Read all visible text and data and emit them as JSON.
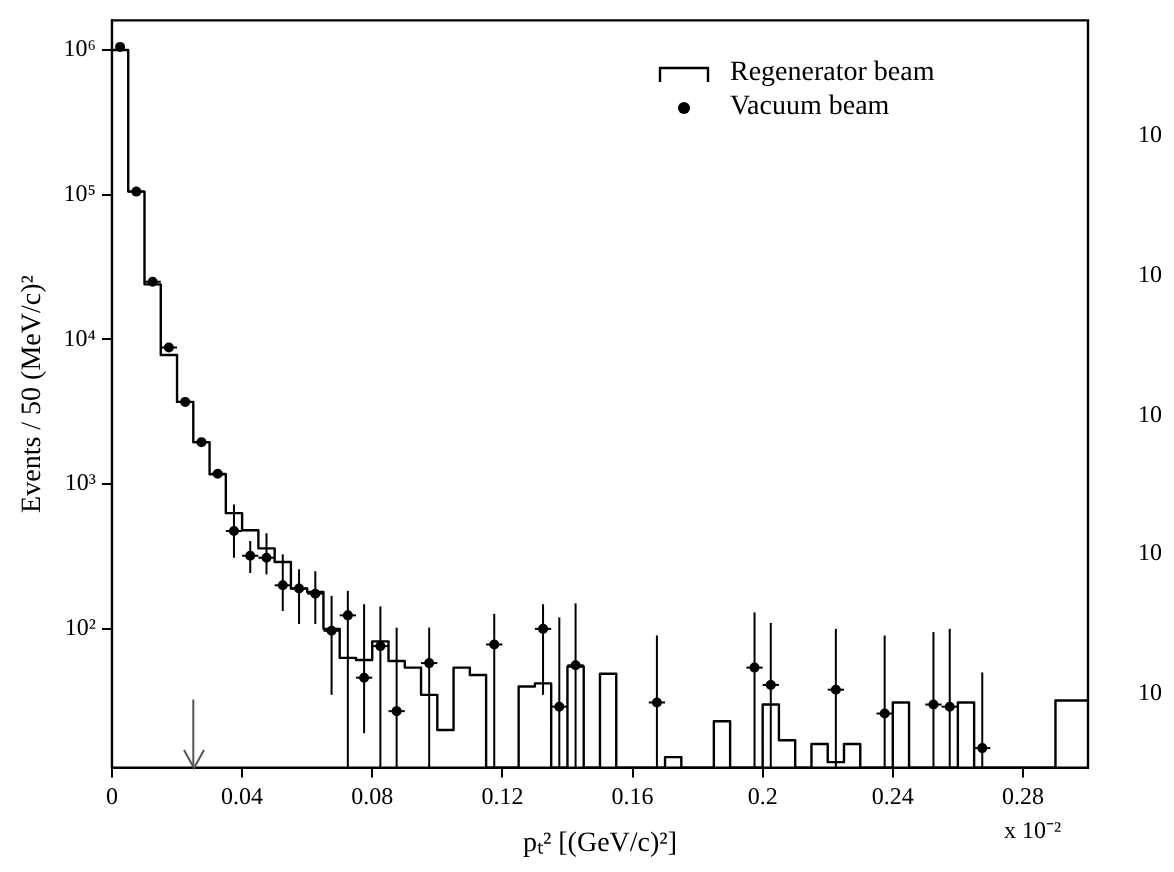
{
  "chart_data": {
    "type": "histogram",
    "xlabel": "pₜ² [(GeV/c)²]",
    "ylabel": "Events / 50 (MeV/c)²",
    "log": "y",
    "legend": "top right",
    "xlim": [
      0,
      0.3
    ],
    "xticks": [
      0,
      0.04,
      0.08,
      0.12,
      0.16,
      0.2,
      0.24,
      0.28
    ],
    "ylim": [
      11,
      1600000
    ],
    "yticks": [
      {
        "value": 100,
        "label": "10²"
      },
      {
        "value": 1000,
        "label": "10³"
      },
      {
        "value": 10000,
        "label": "10⁴"
      },
      {
        "value": 100000,
        "label": "10⁵"
      },
      {
        "value": 1000000,
        "label": "10⁶"
      }
    ],
    "ref_lines": [
      {
        "axis": "x",
        "value": 0.025,
        "color": "#555555"
      }
    ],
    "annotations": [
      "x 10⁻²",
      "10",
      "10",
      "10",
      "10",
      "10"
    ],
    "series": [
      {
        "type": "histogram",
        "name": "Regenerator beam",
        "color": "#000000",
        "bins": [
          0,
          0.005,
          0.01,
          0.015,
          0.02,
          0.025,
          0.03,
          0.035,
          0.04,
          0.045,
          0.05,
          0.055,
          0.06,
          0.065,
          0.07,
          0.075,
          0.08,
          0.085,
          0.09,
          0.095,
          0.1,
          0.105,
          0.11,
          0.115,
          0.12,
          0.125,
          0.13,
          0.135,
          0.14,
          0.145,
          0.15,
          0.155,
          0.16,
          0.165,
          0.17,
          0.175,
          0.18,
          0.185,
          0.19,
          0.195,
          0.2,
          0.205,
          0.21,
          0.215,
          0.22,
          0.225,
          0.23,
          0.235,
          0.24,
          0.245,
          0.25,
          0.255,
          0.26,
          0.265,
          0.27,
          0.275,
          0.28,
          0.285,
          0.29,
          0.295,
          0.3
        ],
        "values": [
          1000000,
          105000,
          24000,
          7800,
          3700,
          1950,
          1170,
          630,
          480,
          360,
          290,
          190,
          180,
          100,
          63,
          61,
          82,
          60,
          54,
          35,
          20,
          54,
          48,
          null,
          null,
          40,
          42,
          null,
          55,
          null,
          49,
          null,
          null,
          null,
          13,
          null,
          null,
          23,
          null,
          null,
          30,
          17,
          null,
          16,
          12,
          16,
          null,
          null,
          31,
          null,
          null,
          null,
          31,
          null,
          null,
          null,
          null,
          null,
          32,
          32
        ]
      },
      {
        "type": "scatter",
        "name": "Vacuum beam",
        "color": "#000000",
        "marker": "circle",
        "x": [
          0.0025,
          0.0075,
          0.0125,
          0.0175,
          0.0225,
          0.0275,
          0.0325,
          0.0375,
          0.0425,
          0.0475,
          0.0525,
          0.0575,
          0.0625,
          0.0675,
          0.0725,
          0.0775,
          0.0825,
          0.0875,
          0.0975,
          0.1175,
          0.1325,
          0.1375,
          0.1425,
          0.1675,
          0.1975,
          0.2025,
          0.2225,
          0.2375,
          0.2525,
          0.2575,
          0.2675
        ],
        "values": [
          1050000,
          105000,
          25000,
          8800,
          3700,
          1950,
          1180,
          475,
          320,
          310,
          200,
          190,
          175,
          97,
          124,
          46,
          76,
          27,
          58,
          78,
          100,
          29,
          56,
          31,
          54,
          41,
          38,
          26,
          30,
          29,
          15
        ],
        "errors": [
          null,
          null,
          null,
          null,
          null,
          null,
          null,
          [
            310,
            724
          ],
          [
            243,
            405
          ],
          [
            238,
            458
          ],
          [
            133,
            327
          ],
          [
            108,
            258
          ],
          [
            108,
            250
          ],
          [
            35,
            169
          ],
          [
            11,
            183
          ],
          [
            19,
            148
          ],
          [
            11,
            143
          ],
          [
            11,
            102
          ],
          [
            11,
            102
          ],
          [
            11,
            127
          ],
          [
            35,
            148
          ],
          [
            11,
            120
          ],
          [
            11,
            150
          ],
          [
            11,
            90
          ],
          [
            11,
            130
          ],
          [
            11,
            110
          ],
          [
            11,
            100
          ],
          [
            11,
            90
          ],
          [
            11,
            95
          ],
          [
            11,
            100
          ],
          [
            11,
            50
          ]
        ],
        "xerrors": [
          null,
          0.0025,
          0.0025,
          0.0025,
          0.0025,
          0.0025,
          0.0025,
          0.0025,
          0.0025,
          0.0025,
          0.0025,
          0.0025,
          0.0025,
          0.0025,
          0.0025,
          0.0025,
          0.0025,
          0.0025,
          0.0025,
          0.0025,
          0.0025,
          0.0025,
          0.0025,
          0.0025,
          0.0025,
          0.0025,
          0.0025,
          0.0025,
          0.0025,
          0.0025,
          0.0025
        ]
      }
    ]
  }
}
